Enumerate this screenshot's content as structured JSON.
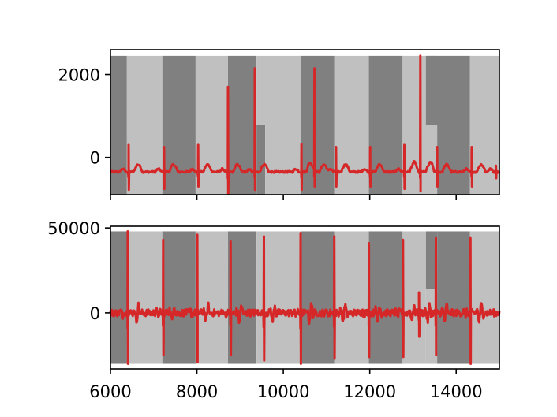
{
  "chart_data": [
    {
      "type": "line",
      "title": "",
      "xlabel": "",
      "ylabel": "",
      "xlim": [
        6000,
        15000
      ],
      "ylim": [
        -900,
        2600
      ],
      "x_ticks": [
        6000,
        8000,
        10000,
        12000,
        14000
      ],
      "x_tick_labels_shown": false,
      "y_ticks": [
        0,
        2000
      ],
      "y_tick_labels": [
        "0",
        "2000"
      ],
      "grid": false,
      "series_color": "#d62728",
      "band_light_color": "#c0c0c0",
      "band_dark_color": "#808080",
      "background_bands": [
        {
          "x0": 6000,
          "x1": 6380,
          "tone": "dark",
          "y0": -900,
          "y1": 2450
        },
        {
          "x0": 6380,
          "x1": 7200,
          "tone": "light",
          "y0": -900,
          "y1": 2450
        },
        {
          "x0": 7200,
          "x1": 7970,
          "tone": "dark",
          "y0": -900,
          "y1": 2450
        },
        {
          "x0": 7970,
          "x1": 8720,
          "tone": "light",
          "y0": -900,
          "y1": 2450
        },
        {
          "x0": 8720,
          "x1": 9380,
          "tone": "dark",
          "y0": 780,
          "y1": 2450
        },
        {
          "x0": 8720,
          "x1": 9380,
          "tone": "dark",
          "y0": -900,
          "y1": 780
        },
        {
          "x0": 9380,
          "x1": 9580,
          "tone": "dark",
          "y0": -900,
          "y1": 780
        },
        {
          "x0": 9380,
          "x1": 10400,
          "tone": "light",
          "y0": 780,
          "y1": 2450
        },
        {
          "x0": 9580,
          "x1": 10400,
          "tone": "light",
          "y0": -900,
          "y1": 780
        },
        {
          "x0": 10400,
          "x1": 11180,
          "tone": "dark",
          "y0": -900,
          "y1": 2450
        },
        {
          "x0": 11180,
          "x1": 11980,
          "tone": "light",
          "y0": -900,
          "y1": 2450
        },
        {
          "x0": 11980,
          "x1": 12760,
          "tone": "dark",
          "y0": -900,
          "y1": 2450
        },
        {
          "x0": 12760,
          "x1": 13560,
          "tone": "light",
          "y0": -900,
          "y1": 2450
        },
        {
          "x0": 13560,
          "x1": 14320,
          "tone": "dark",
          "y0": -900,
          "y1": 780
        },
        {
          "x0": 13300,
          "x1": 14320,
          "tone": "dark",
          "y0": 780,
          "y1": 2450
        },
        {
          "x0": 13300,
          "x1": 13560,
          "tone": "light",
          "y0": 780,
          "y1": 780
        },
        {
          "x0": 14320,
          "x1": 15000,
          "tone": "light",
          "y0": -900,
          "y1": 2450
        }
      ],
      "baseline": -350,
      "beats": [
        {
          "x": 6420,
          "peak": 300,
          "trough": -780
        },
        {
          "x": 7240,
          "peak": 250,
          "trough": -760
        },
        {
          "x": 8030,
          "peak": 300,
          "trough": -700
        },
        {
          "x": 8720,
          "peak": 1700,
          "trough": -880
        },
        {
          "x": 9340,
          "peak": 2150,
          "trough": -780
        },
        {
          "x": 10420,
          "peak": 320,
          "trough": -780
        },
        {
          "x": 10720,
          "peak": 2150,
          "trough": -700
        },
        {
          "x": 11220,
          "peak": 250,
          "trough": -700
        },
        {
          "x": 12010,
          "peak": 250,
          "trough": -700
        },
        {
          "x": 12800,
          "peak": 300,
          "trough": -760
        },
        {
          "x": 13170,
          "peak": 2450,
          "trough": -820
        },
        {
          "x": 13560,
          "peak": 250,
          "trough": -700
        },
        {
          "x": 14360,
          "peak": 250,
          "trough": -700
        },
        {
          "x": 14920,
          "peak": -200,
          "trough": -500
        }
      ]
    },
    {
      "type": "line",
      "title": "",
      "xlabel": "",
      "ylabel": "",
      "xlim": [
        6000,
        15000
      ],
      "ylim": [
        -33000,
        51000
      ],
      "x_ticks": [
        6000,
        8000,
        10000,
        12000,
        14000
      ],
      "x_tick_labels": [
        "6000",
        "8000",
        "10000",
        "12000",
        "14000"
      ],
      "y_ticks": [
        0,
        50000
      ],
      "y_tick_labels": [
        "0",
        "50000"
      ],
      "grid": false,
      "series_color": "#d62728",
      "band_light_color": "#c0c0c0",
      "band_dark_color": "#808080",
      "background_bands": [
        {
          "x0": 6000,
          "x1": 6380,
          "tone": "dark",
          "y0": -30000,
          "y1": 48000
        },
        {
          "x0": 6380,
          "x1": 7200,
          "tone": "light",
          "y0": -30000,
          "y1": 48000
        },
        {
          "x0": 7200,
          "x1": 7970,
          "tone": "dark",
          "y0": -30000,
          "y1": 48000
        },
        {
          "x0": 7970,
          "x1": 8720,
          "tone": "light",
          "y0": -30000,
          "y1": 48000
        },
        {
          "x0": 8720,
          "x1": 9380,
          "tone": "dark",
          "y0": -30000,
          "y1": 48000
        },
        {
          "x0": 9380,
          "x1": 10400,
          "tone": "light",
          "y0": -30000,
          "y1": 48000
        },
        {
          "x0": 10400,
          "x1": 11180,
          "tone": "dark",
          "y0": -30000,
          "y1": 48000
        },
        {
          "x0": 11180,
          "x1": 11980,
          "tone": "light",
          "y0": -30000,
          "y1": 48000
        },
        {
          "x0": 11980,
          "x1": 12760,
          "tone": "dark",
          "y0": -30000,
          "y1": 48000
        },
        {
          "x0": 12760,
          "x1": 13300,
          "tone": "light",
          "y0": -30000,
          "y1": 48000
        },
        {
          "x0": 13300,
          "x1": 13560,
          "tone": "dark",
          "y0": 14000,
          "y1": 48000
        },
        {
          "x0": 13300,
          "x1": 13560,
          "tone": "light",
          "y0": -30000,
          "y1": 14000
        },
        {
          "x0": 13560,
          "x1": 14320,
          "tone": "dark",
          "y0": -30000,
          "y1": 48000
        },
        {
          "x0": 14320,
          "x1": 15000,
          "tone": "light",
          "y0": -30000,
          "y1": 48000
        }
      ],
      "baseline": 0,
      "beats": [
        {
          "x": 6400,
          "peak": 48000,
          "trough": -30000
        },
        {
          "x": 7220,
          "peak": 43000,
          "trough": -25000
        },
        {
          "x": 8010,
          "peak": 46000,
          "trough": -29000
        },
        {
          "x": 8780,
          "peak": 42000,
          "trough": -25000
        },
        {
          "x": 9550,
          "peak": 45000,
          "trough": -28000
        },
        {
          "x": 10400,
          "peak": 47000,
          "trough": -30000
        },
        {
          "x": 11180,
          "peak": 45000,
          "trough": -27000
        },
        {
          "x": 11980,
          "peak": 41000,
          "trough": -26000
        },
        {
          "x": 12770,
          "peak": 43000,
          "trough": -26000
        },
        {
          "x": 13140,
          "peak": 12000,
          "trough": -14000
        },
        {
          "x": 13530,
          "peak": 44000,
          "trough": -25000
        },
        {
          "x": 14330,
          "peak": 44000,
          "trough": -30000
        }
      ]
    }
  ]
}
